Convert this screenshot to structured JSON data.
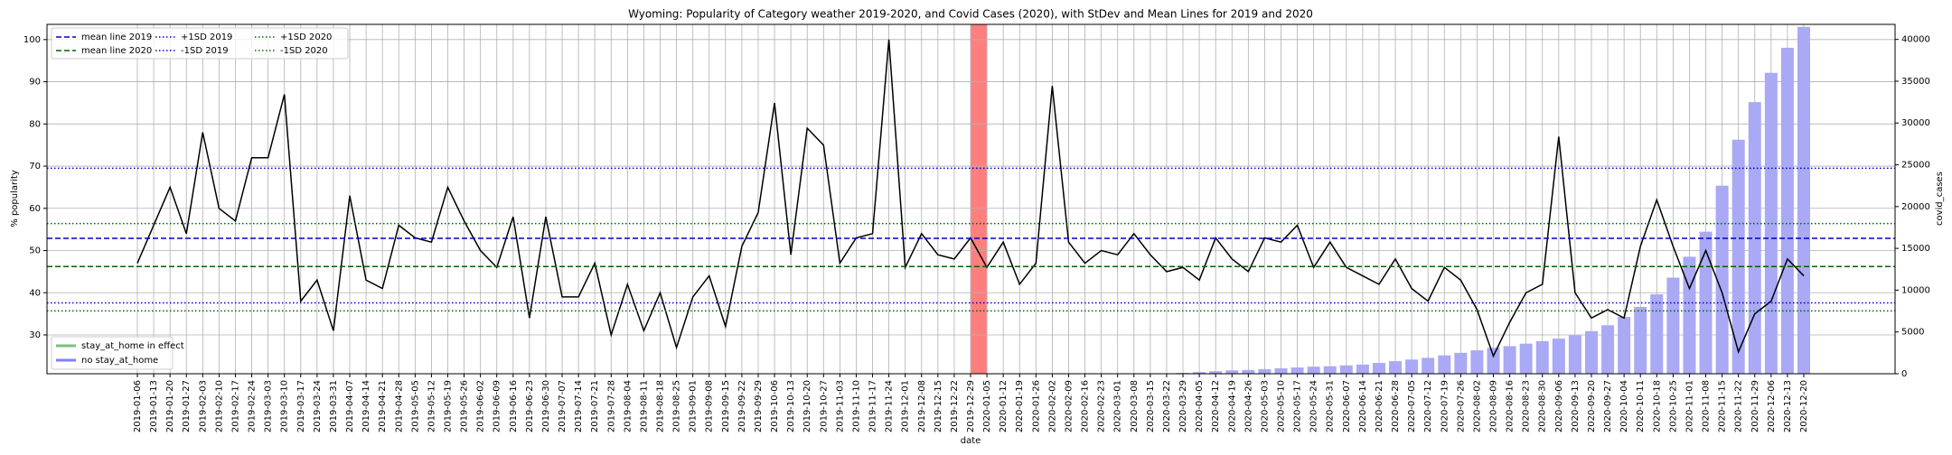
{
  "chart_data": {
    "type": "line",
    "title": "Wyoming: Popularity of Category weather 2019-2020, and Covid Cases (2020), with StDev and Mean Lines for 2019 and 2020",
    "xlabel": "date",
    "ylabel": "% popularity",
    "y2label": "covid_cases",
    "categories": [
      "2019-01-06",
      "2019-01-13",
      "2019-01-20",
      "2019-01-27",
      "2019-02-03",
      "2019-02-10",
      "2019-02-17",
      "2019-02-24",
      "2019-03-03",
      "2019-03-10",
      "2019-03-17",
      "2019-03-24",
      "2019-03-31",
      "2019-04-07",
      "2019-04-14",
      "2019-04-21",
      "2019-04-28",
      "2019-05-05",
      "2019-05-12",
      "2019-05-19",
      "2019-05-26",
      "2019-06-02",
      "2019-06-09",
      "2019-06-16",
      "2019-06-23",
      "2019-06-30",
      "2019-07-07",
      "2019-07-14",
      "2019-07-21",
      "2019-07-28",
      "2019-08-04",
      "2019-08-11",
      "2019-08-18",
      "2019-08-25",
      "2019-09-01",
      "2019-09-08",
      "2019-09-15",
      "2019-09-22",
      "2019-09-29",
      "2019-10-06",
      "2019-10-13",
      "2019-10-20",
      "2019-10-27",
      "2019-11-03",
      "2019-11-10",
      "2019-11-17",
      "2019-11-24",
      "2019-12-01",
      "2019-12-08",
      "2019-12-15",
      "2019-12-22",
      "2019-12-29",
      "2020-01-05",
      "2020-01-12",
      "2020-01-19",
      "2020-01-26",
      "2020-02-02",
      "2020-02-09",
      "2020-02-16",
      "2020-02-23",
      "2020-03-01",
      "2020-03-08",
      "2020-03-15",
      "2020-03-22",
      "2020-03-29",
      "2020-04-05",
      "2020-04-12",
      "2020-04-19",
      "2020-04-26",
      "2020-05-03",
      "2020-05-10",
      "2020-05-17",
      "2020-05-24",
      "2020-05-31",
      "2020-06-07",
      "2020-06-14",
      "2020-06-21",
      "2020-06-28",
      "2020-07-05",
      "2020-07-12",
      "2020-07-19",
      "2020-07-26",
      "2020-08-02",
      "2020-08-09",
      "2020-08-16",
      "2020-08-23",
      "2020-08-30",
      "2020-09-06",
      "2020-09-13",
      "2020-09-20",
      "2020-09-27",
      "2020-10-04",
      "2020-10-11",
      "2020-10-18",
      "2020-10-25",
      "2020-11-01",
      "2020-11-08",
      "2020-11-15",
      "2020-11-22",
      "2020-11-29",
      "2020-12-06",
      "2020-12-13",
      "2020-12-20"
    ],
    "series": [
      {
        "color": "#000000",
        "values": [
          47,
          56,
          65,
          54,
          78,
          60,
          57,
          72,
          72,
          87,
          38,
          43,
          31,
          63,
          43,
          41,
          56,
          53,
          52,
          65,
          57,
          50,
          46,
          58,
          34,
          58,
          39,
          39,
          47,
          30,
          42,
          31,
          40,
          27,
          39,
          44,
          32,
          51,
          59,
          85,
          49,
          79,
          75,
          47,
          53,
          54,
          100,
          46,
          54,
          49,
          48,
          53,
          46,
          52,
          42,
          47,
          89,
          52,
          47,
          50,
          49,
          54,
          49,
          45,
          46,
          43,
          53,
          48,
          45,
          53,
          52,
          56,
          46,
          52,
          46,
          44,
          42,
          48,
          41,
          38,
          46,
          43,
          36,
          25,
          33,
          40,
          42,
          77,
          40,
          34,
          36,
          34,
          51,
          62,
          51,
          41,
          50,
          40,
          26,
          35,
          38,
          48,
          44
        ]
      },
      {
        "color": "#a9a9f5",
        "type": "bar",
        "axis": "y2",
        "values": [
          null,
          null,
          null,
          null,
          null,
          null,
          null,
          null,
          null,
          null,
          null,
          null,
          null,
          null,
          null,
          null,
          null,
          null,
          null,
          null,
          null,
          null,
          null,
          null,
          null,
          null,
          null,
          null,
          null,
          null,
          null,
          null,
          null,
          null,
          null,
          null,
          null,
          null,
          null,
          null,
          null,
          null,
          null,
          null,
          null,
          null,
          null,
          null,
          null,
          null,
          null,
          null,
          null,
          null,
          null,
          null,
          null,
          null,
          null,
          null,
          null,
          null,
          null,
          null,
          100,
          200,
          300,
          400,
          450,
          550,
          650,
          750,
          850,
          900,
          1000,
          1100,
          1300,
          1500,
          1700,
          1900,
          2200,
          2500,
          2800,
          3100,
          3300,
          3600,
          3900,
          4200,
          4600,
          5100,
          5800,
          6800,
          8000,
          9500,
          11500,
          14000,
          17000,
          22500,
          28000,
          32500,
          36000,
          39000,
          41500
        ]
      }
    ],
    "hlines": [
      {
        "name": "mean line 2019",
        "value": 52.9,
        "color": "#0000cc",
        "style": "dashed"
      },
      {
        "name": "mean line 2020",
        "value": 46.2,
        "color": "#006400",
        "style": "dashed"
      },
      {
        "name": "+1SD 2019",
        "value": 69.5,
        "color": "#0000cc",
        "style": "dotted"
      },
      {
        "name": "-1SD 2019",
        "value": 37.6,
        "color": "#0000cc",
        "style": "dotted"
      },
      {
        "name": "+1SD 2020",
        "value": 56.4,
        "color": "#006400",
        "style": "dotted"
      },
      {
        "name": "-1SD 2020",
        "value": 35.7,
        "color": "#006400",
        "style": "dotted"
      }
    ],
    "span": {
      "from": "2019-12-29",
      "to": "2020-01-05",
      "color": "#ff7f7f"
    },
    "span_legend": [
      {
        "name": "stay_at_home in effect",
        "color": "#7fbf7f"
      },
      {
        "name": "no stay_at_home",
        "color": "#7f7fff"
      }
    ],
    "ylim": [
      20.8,
      103.6
    ],
    "yticks": [
      30,
      40,
      50,
      60,
      70,
      80,
      90,
      100
    ],
    "y2lim": [
      0,
      41800
    ],
    "y2ticks": [
      0,
      5000,
      10000,
      15000,
      20000,
      25000,
      30000,
      35000,
      40000
    ],
    "grid": true
  }
}
